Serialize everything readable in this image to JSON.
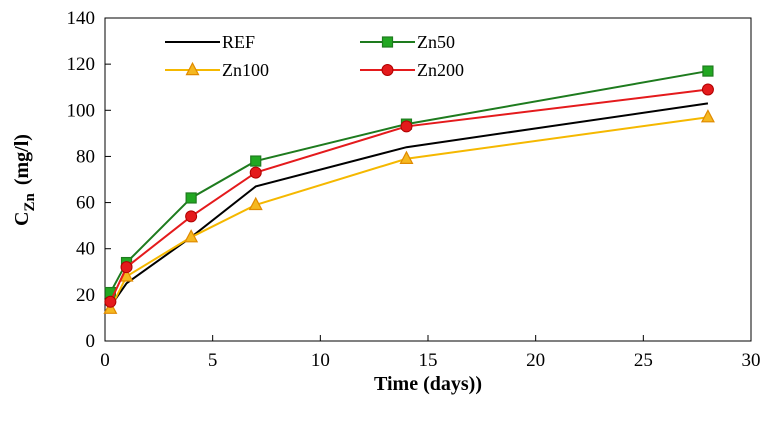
{
  "chart_data": {
    "type": "line",
    "title": "",
    "xlabel": "Time (days))",
    "ylabel_main": "C",
    "ylabel_sub": "Zn",
    "ylabel_unit": "(mg/l)",
    "xlim": [
      0,
      30
    ],
    "ylim": [
      0,
      140
    ],
    "xticks": [
      0,
      5,
      10,
      15,
      20,
      25,
      30
    ],
    "yticks": [
      0,
      20,
      40,
      60,
      80,
      100,
      120,
      140
    ],
    "grid": false,
    "legend_position": "top-left",
    "x": [
      0.25,
      1,
      4,
      7,
      14,
      28
    ],
    "series": [
      {
        "name": "REF",
        "color": "#000000",
        "marker": "none",
        "values": [
          15,
          25,
          45,
          67,
          84,
          103
        ]
      },
      {
        "name": "Zn50",
        "color": "#1e7b1e",
        "marker": "square",
        "marker_fill": "#22a822",
        "values": [
          21,
          34,
          62,
          78,
          94,
          117
        ]
      },
      {
        "name": "Zn100",
        "color": "#f5b800",
        "marker": "triangle",
        "marker_fill": "#f5b820",
        "values": [
          14,
          28,
          45,
          59,
          79,
          97
        ]
      },
      {
        "name": "Zn200",
        "color": "#e41a1c",
        "marker": "circle",
        "marker_fill": "#e41a1c",
        "values": [
          17,
          32,
          54,
          73,
          93,
          109
        ]
      }
    ]
  }
}
